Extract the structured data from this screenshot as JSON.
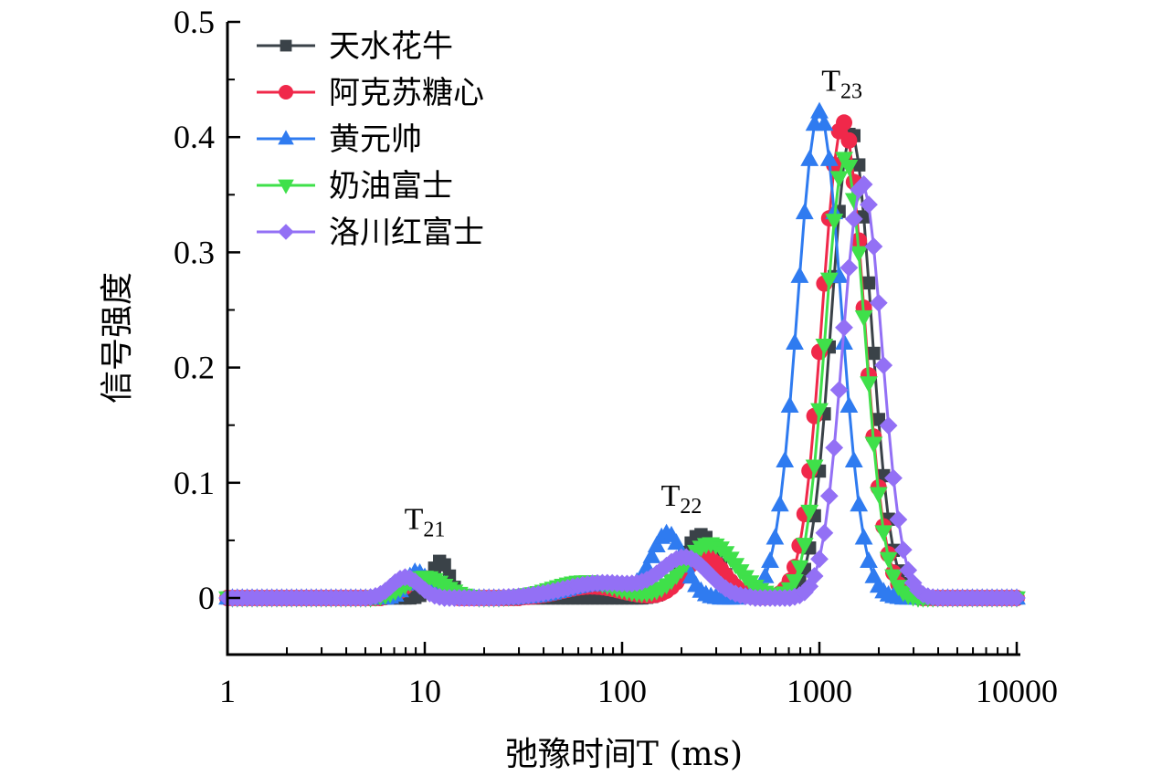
{
  "chart_data": {
    "type": "line",
    "title": "",
    "xlabel": "弛豫时间T (ms)",
    "ylabel": "信号强度",
    "xscale": "log",
    "xlim": [
      1,
      10000
    ],
    "ylim": [
      -0.05,
      0.5
    ],
    "xticks": [
      1,
      10,
      100,
      1000,
      10000
    ],
    "xtick_labels": [
      "1",
      "10",
      "100",
      "1000",
      "10000"
    ],
    "yticks": [
      0,
      0.1,
      0.2,
      0.3,
      0.4,
      0.5
    ],
    "ytick_labels": [
      "0",
      "0.1",
      "0.2",
      "0.3",
      "0.4",
      "0.5"
    ],
    "grid": false,
    "legend_position": "top-left",
    "annotations": [
      {
        "text": "T",
        "sub": "21",
        "x": 10,
        "y": 0.06
      },
      {
        "text": "T",
        "sub": "22",
        "x": 200,
        "y": 0.08
      },
      {
        "text": "T",
        "sub": "23",
        "x": 1300,
        "y": 0.44
      }
    ],
    "series": [
      {
        "name": "天水花牛",
        "color": "#3a4248",
        "marker": "square",
        "peaks": [
          [
            12,
            0.032,
            0.045
          ],
          [
            250,
            0.055,
            0.09
          ],
          [
            1450,
            0.405,
            0.1
          ]
        ]
      },
      {
        "name": "阿克苏糖心",
        "color": "#f0284a",
        "marker": "circle",
        "peaks": [
          [
            9.5,
            0.018,
            0.07
          ],
          [
            70,
            0.01,
            0.15
          ],
          [
            260,
            0.036,
            0.1
          ],
          [
            1320,
            0.413,
            0.105
          ]
        ]
      },
      {
        "name": "黄元帅",
        "color": "#2f7bf0",
        "marker": "triangle-up",
        "peaks": [
          [
            9,
            0.022,
            0.05
          ],
          [
            12,
            0.012,
            0.05
          ],
          [
            75,
            0.012,
            0.16
          ],
          [
            170,
            0.055,
            0.08
          ],
          [
            1000,
            0.422,
            0.11
          ]
        ]
      },
      {
        "name": "奶油富士",
        "color": "#3fe04a",
        "marker": "triangle-down",
        "peaks": [
          [
            10,
            0.018,
            0.1
          ],
          [
            65,
            0.014,
            0.16
          ],
          [
            280,
            0.047,
            0.13
          ],
          [
            1350,
            0.382,
            0.1
          ]
        ]
      },
      {
        "name": "洛川红富士",
        "color": "#9370f5",
        "marker": "diamond",
        "peaks": [
          [
            8,
            0.018,
            0.07
          ],
          [
            80,
            0.013,
            0.2
          ],
          [
            210,
            0.034,
            0.12
          ],
          [
            1650,
            0.36,
            0.1
          ]
        ]
      }
    ],
    "x_samples_per_decade": 40
  }
}
